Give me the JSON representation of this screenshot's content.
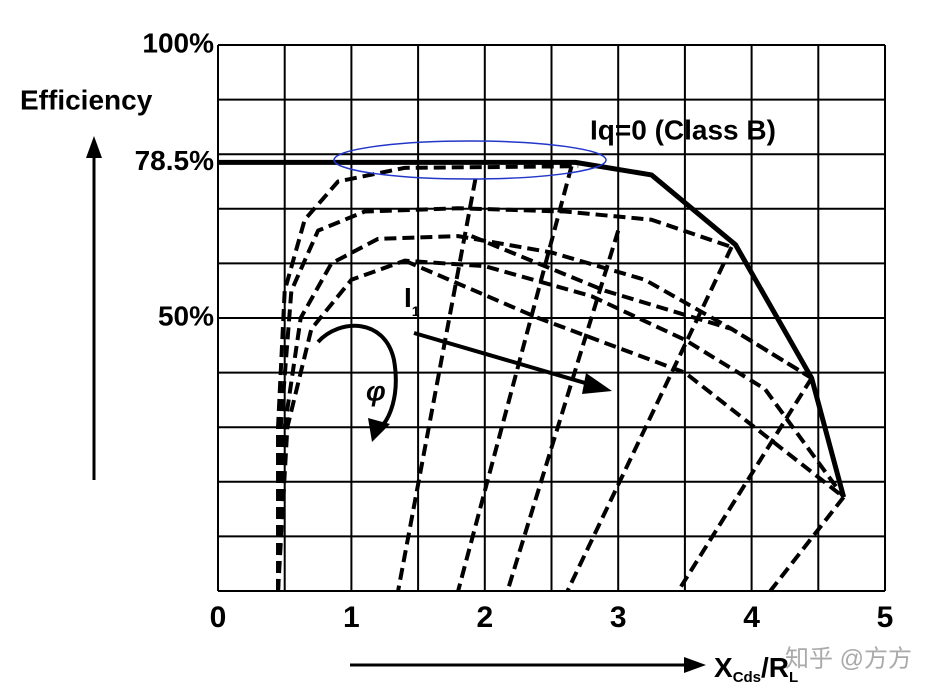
{
  "chart_data": {
    "type": "line",
    "y_label": "Efficiency",
    "x_label": {
      "main": "X",
      "sub1": "Cds",
      "mid": "/R",
      "sub2": "L"
    },
    "annotations": {
      "class_b": "Iq=0 (Class B)",
      "current": "I",
      "current_sub": "1",
      "phase": "φ"
    },
    "watermark": "知乎 @方方",
    "xlim": [
      0,
      5
    ],
    "ylim": [
      0,
      100
    ],
    "xticks": [
      0,
      1,
      2,
      3,
      4,
      5
    ],
    "yticks": [
      {
        "value": 50,
        "label": "50%"
      },
      {
        "value": 78.5,
        "label": "78.5%"
      },
      {
        "value": 100,
        "label": "100%"
      }
    ],
    "xgrid": [
      0,
      0.5,
      1,
      1.5,
      2,
      2.5,
      3,
      3.5,
      4,
      4.5,
      5
    ],
    "ygrid": [
      0,
      10,
      20,
      30,
      40,
      50,
      60,
      70,
      80,
      90,
      100
    ],
    "series": [
      {
        "color": "#000000",
        "dash": false,
        "x": [
          0,
          2.68,
          3.25,
          3.88,
          4.45,
          4.69
        ],
        "values": [
          78.5,
          78.5,
          76.2,
          63.4,
          39,
          17.2
        ]
      },
      {
        "color": "#000000",
        "dash": true,
        "x": [
          4.69,
          4.14
        ],
        "values": [
          17.2,
          0
        ]
      },
      {
        "color": "#000000",
        "dash": true,
        "x": [
          0.45,
          0.45,
          0.5,
          0.65,
          0.9,
          1.4,
          2.7
        ],
        "values": [
          0,
          30,
          55,
          68,
          75,
          77.5,
          77.8
        ]
      },
      {
        "color": "#000000",
        "dash": true,
        "x": [
          0.45,
          0.47,
          0.55,
          0.75,
          1.1,
          1.8,
          2.6,
          3.25,
          3.85
        ],
        "values": [
          0,
          30,
          55,
          66,
          69.5,
          70.1,
          69.5,
          68,
          63
        ]
      },
      {
        "color": "#000000",
        "dash": true,
        "x": [
          0.45,
          0.5,
          0.62,
          0.85,
          1.2,
          1.8,
          2.5,
          3.2,
          3.85,
          4.45
        ],
        "values": [
          0,
          30,
          50,
          60,
          64.5,
          65,
          62,
          57,
          48,
          39
        ]
      },
      {
        "color": "#000000",
        "dash": true,
        "x": [
          0.45,
          0.52,
          0.7,
          1,
          1.4,
          2,
          2.8,
          3.5,
          4.1,
          4.69
        ],
        "values": [
          0,
          30,
          48,
          57,
          60.5,
          59.5,
          54,
          46,
          37,
          17.2
        ]
      },
      {
        "color": "#000000",
        "dash": true,
        "x": [
          1.93,
          1.35
        ],
        "values": [
          75.5,
          0
        ]
      },
      {
        "color": "#000000",
        "dash": true,
        "x": [
          2.65,
          1.8
        ],
        "values": [
          77.8,
          0
        ]
      },
      {
        "color": "#000000",
        "dash": true,
        "x": [
          3.0,
          2.17
        ],
        "values": [
          66,
          0
        ]
      },
      {
        "color": "#000000",
        "dash": true,
        "x": [
          3.85,
          2.62
        ],
        "values": [
          63,
          0
        ]
      },
      {
        "color": "#000000",
        "dash": true,
        "x": [
          4.45,
          3.45
        ],
        "values": [
          39,
          0
        ]
      },
      {
        "color": "#000000",
        "dash": true,
        "x": [
          1.9,
          2.9,
          3.85,
          4.45
        ],
        "values": [
          65,
          55,
          48,
          39
        ]
      },
      {
        "color": "#000000",
        "dash": true,
        "x": [
          1.4,
          2.4,
          3.5,
          4.69
        ],
        "values": [
          60.5,
          50,
          40,
          17.2
        ]
      }
    ]
  }
}
